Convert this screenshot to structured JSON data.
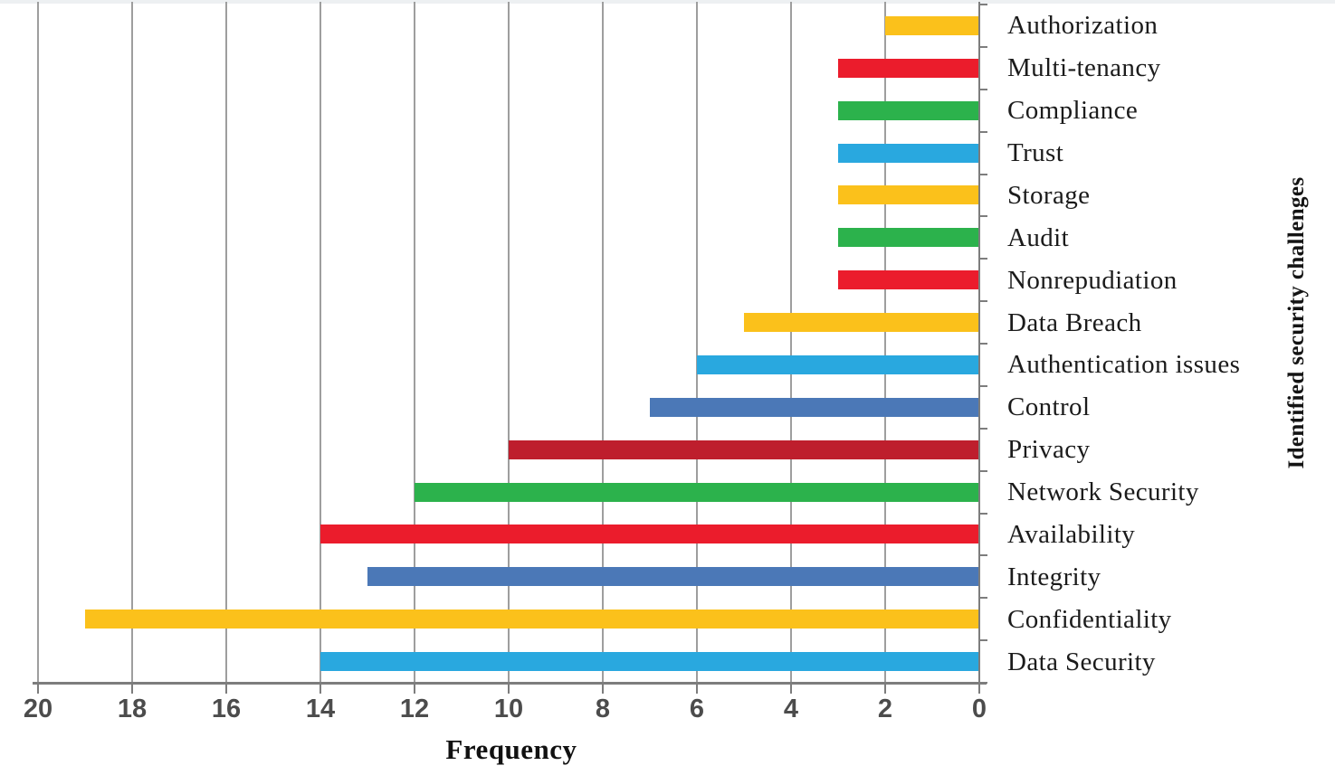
{
  "chart_data": {
    "type": "bar",
    "orientation": "horizontal",
    "anchored": "right",
    "title": "",
    "xlabel": "Frequency",
    "ylabel": "Identified security challenges",
    "x_axis": {
      "min": 0,
      "max": 20,
      "reversed": true,
      "ticks": [
        20,
        18,
        16,
        14,
        12,
        10,
        8,
        6,
        4,
        2,
        0
      ]
    },
    "grid": true,
    "legend_position": "none",
    "categories": [
      "Authorization",
      "Multi-tenancy",
      "Compliance",
      "Trust",
      "Storage",
      "Audit",
      "Nonrepudiation",
      "Data Breach",
      "Authentication issues",
      "Control",
      "Privacy",
      "Network Security",
      "Availability",
      "Integrity",
      "Confidentiality",
      "Data Security"
    ],
    "values": [
      2,
      3,
      3,
      3,
      3,
      3,
      3,
      5,
      6,
      7,
      10,
      12,
      14,
      13,
      19,
      14
    ],
    "bar_colors": [
      "#FBC11B",
      "#EB1C2C",
      "#2CB24C",
      "#29A8DF",
      "#FBC11B",
      "#2CB24C",
      "#EB1C2C",
      "#FBC11B",
      "#29A8DF",
      "#4B78B7",
      "#BE1E2D",
      "#2CB24C",
      "#EB1C2C",
      "#4B78B7",
      "#FBC11B",
      "#29A8DF"
    ]
  },
  "styles": {
    "gridline_color": "#9e9e9e",
    "axis_color": "#7d7d7d",
    "tick_label_color": "#4c4c4c",
    "category_label_color": "#1b1b1b",
    "background": "#ffffff"
  }
}
